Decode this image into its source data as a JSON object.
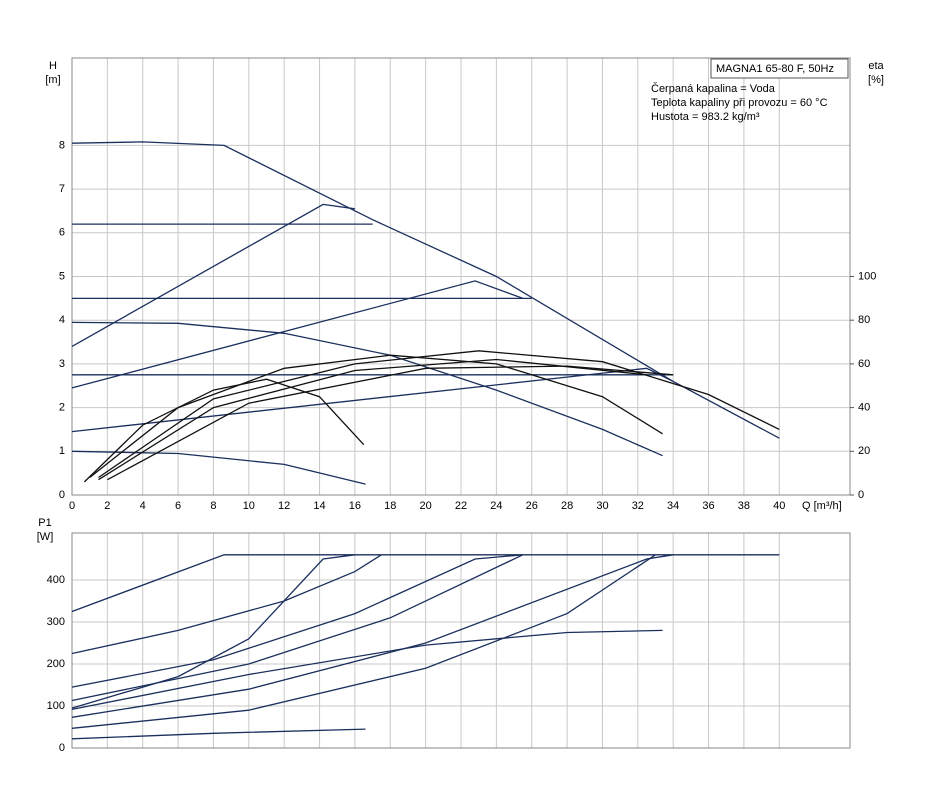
{
  "chart_data": [
    {
      "type": "line",
      "y_label": "H",
      "y_unit": "[m]",
      "y2_label": "eta",
      "y2_unit": "[%]",
      "x_label": "Q [m³/h]",
      "legend_title": "MAGNA1 65-80 F, 50Hz",
      "annotations": [
        "Čerpaná kapalina = Voda",
        "Teplota kapaliny při provozu = 60 °C",
        "Hustota = 983.2 kg/m³"
      ],
      "xlim": [
        0,
        44
      ],
      "ylim": [
        0,
        10
      ],
      "y2lim": [
        0,
        200
      ],
      "xticks": [
        0,
        2,
        4,
        6,
        8,
        10,
        12,
        14,
        16,
        18,
        20,
        22,
        24,
        26,
        28,
        30,
        32,
        34,
        36,
        38,
        40
      ],
      "yticks": [
        0,
        1,
        2,
        3,
        4,
        5,
        6,
        7,
        8
      ],
      "y2ticks": [
        0,
        20,
        40,
        60,
        80,
        100
      ],
      "grid": true,
      "series": [
        {
          "color": "#1b2f5e",
          "x": [
            0,
            4,
            8.6,
            17,
            24,
            34,
            40
          ],
          "values": [
            8.05,
            8.08,
            8.0,
            6.3,
            5.0,
            2.6,
            1.3
          ]
        },
        {
          "color": "#1b2f5e",
          "x": [
            0,
            17
          ],
          "values": [
            6.2,
            6.2
          ]
        },
        {
          "color": "#1b2f5e",
          "x": [
            0,
            26
          ],
          "values": [
            4.5,
            4.5
          ]
        },
        {
          "color": "#1b2f5e",
          "x": [
            0,
            34
          ],
          "values": [
            2.75,
            2.75
          ]
        },
        {
          "color": "#1b2f5e",
          "x": [
            0,
            14.2,
            16
          ],
          "values": [
            3.4,
            6.65,
            6.55
          ]
        },
        {
          "color": "#1b2f5e",
          "x": [
            0,
            22.8,
            25.5
          ],
          "values": [
            2.45,
            4.9,
            4.5
          ]
        },
        {
          "color": "#1b2f5e",
          "x": [
            0,
            32.5,
            34
          ],
          "values": [
            1.45,
            2.9,
            2.6
          ]
        },
        {
          "color": "#1b2f5e",
          "x": [
            0,
            6,
            12,
            18,
            24,
            30,
            33.4
          ],
          "values": [
            3.95,
            3.93,
            3.7,
            3.2,
            2.4,
            1.5,
            0.9
          ]
        },
        {
          "color": "#1b2f5e",
          "x": [
            0,
            6,
            12,
            16.6
          ],
          "values": [
            1.0,
            0.95,
            0.7,
            0.25
          ]
        },
        {
          "color": "#111111",
          "axis": "y2",
          "x": [
            0.7,
            4,
            8,
            11,
            14,
            16.5
          ],
          "values": [
            6,
            32,
            48,
            53,
            45,
            23
          ]
        },
        {
          "color": "#111111",
          "axis": "y2",
          "x": [
            1,
            6,
            12,
            18,
            24,
            30,
            33.4
          ],
          "values": [
            8,
            40,
            58,
            64,
            60,
            45,
            28
          ]
        },
        {
          "color": "#111111",
          "axis": "y2",
          "x": [
            1.5,
            8,
            16,
            23,
            30,
            36,
            40
          ],
          "values": [
            8,
            44,
            60,
            66,
            61,
            46,
            30
          ]
        },
        {
          "color": "#111111",
          "axis": "y2",
          "x": [
            1.5,
            8,
            16,
            24,
            32.5
          ],
          "values": [
            7,
            40,
            57,
            62,
            55
          ]
        },
        {
          "color": "#111111",
          "axis": "y2",
          "x": [
            2,
            10,
            20,
            28,
            34
          ],
          "values": [
            7,
            42,
            58,
            59,
            55
          ]
        }
      ]
    },
    {
      "type": "line",
      "y_label": "P1",
      "y_unit": "[W]",
      "xlim": [
        0,
        44
      ],
      "ylim": [
        0,
        512
      ],
      "xticks": [
        0,
        2,
        4,
        6,
        8,
        10,
        12,
        14,
        16,
        18,
        20,
        22,
        24,
        26,
        28,
        30,
        32,
        34,
        36,
        38,
        40
      ],
      "yticks": [
        0,
        100,
        200,
        300,
        400
      ],
      "grid": true,
      "series": [
        {
          "color": "#1b2f5e",
          "x": [
            0,
            8.6,
            40
          ],
          "values": [
            325,
            460,
            460
          ]
        },
        {
          "color": "#1b2f5e",
          "x": [
            0,
            6,
            12,
            16,
            17.5
          ],
          "values": [
            225,
            280,
            350,
            420,
            460
          ]
        },
        {
          "color": "#1b2f5e",
          "x": [
            0,
            6,
            10,
            14.2,
            16
          ],
          "values": [
            95,
            170,
            260,
            450,
            460
          ]
        },
        {
          "color": "#1b2f5e",
          "x": [
            0,
            8,
            16,
            22.8,
            25.5
          ],
          "values": [
            145,
            210,
            320,
            450,
            460
          ]
        },
        {
          "color": "#1b2f5e",
          "x": [
            0,
            10,
            18,
            25.5
          ],
          "values": [
            113,
            200,
            310,
            460
          ]
        },
        {
          "color": "#1b2f5e",
          "x": [
            0,
            10,
            20,
            32.5,
            34
          ],
          "values": [
            73,
            140,
            250,
            450,
            460
          ]
        },
        {
          "color": "#1b2f5e",
          "x": [
            0,
            10,
            20,
            28,
            33
          ],
          "values": [
            47,
            90,
            190,
            320,
            460
          ]
        },
        {
          "color": "#1b2f5e",
          "x": [
            0,
            10,
            20,
            28,
            33.4
          ],
          "values": [
            92,
            175,
            245,
            275,
            280
          ]
        },
        {
          "color": "#1b2f5e",
          "x": [
            0,
            8,
            16.6
          ],
          "values": [
            22,
            35,
            45
          ]
        }
      ]
    }
  ]
}
